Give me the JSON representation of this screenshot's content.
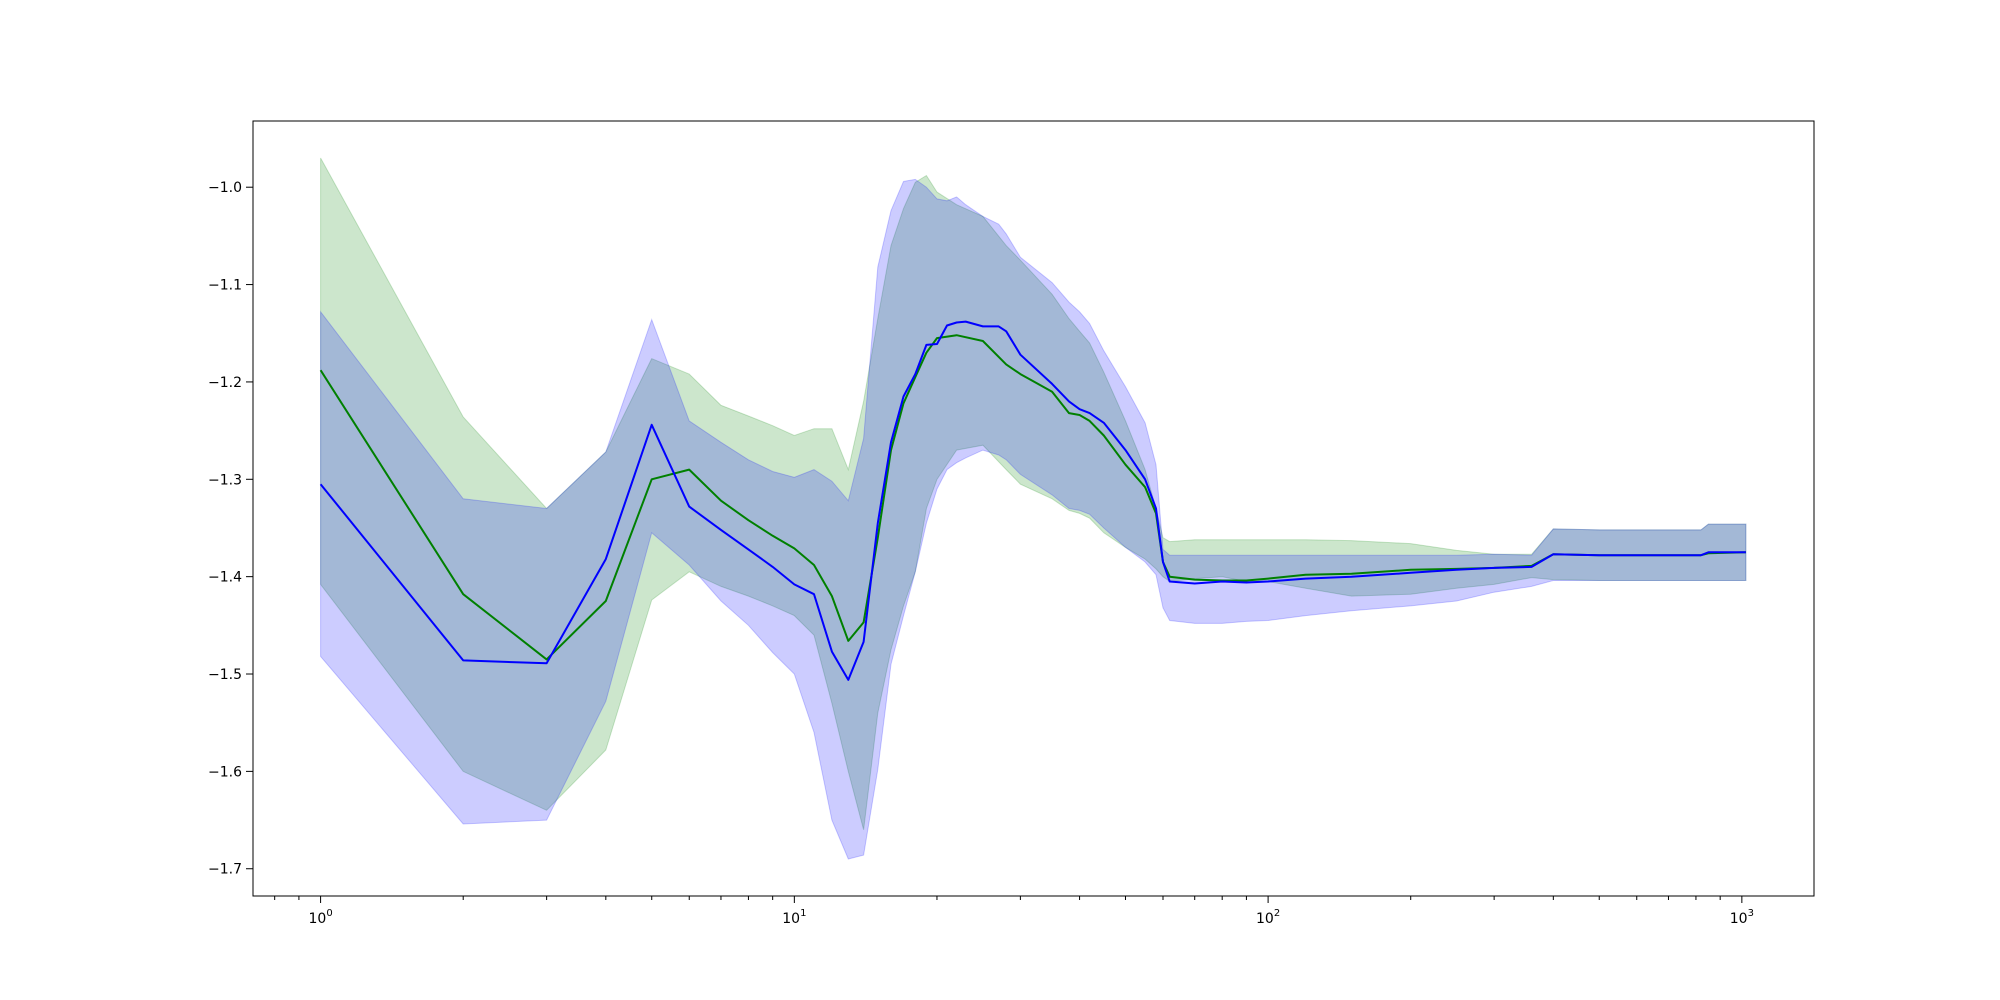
{
  "chart_data": {
    "type": "line",
    "title": "",
    "xlabel": "",
    "ylabel": "",
    "xscale": "log",
    "xlim": [
      0.72,
      1420
    ],
    "ylim": [
      -1.728,
      -0.932
    ],
    "grid": false,
    "legend": "none",
    "x_ticks": [
      {
        "value": 1,
        "base": "10",
        "exp": "0"
      },
      {
        "value": 10,
        "base": "10",
        "exp": "1"
      },
      {
        "value": 100,
        "base": "10",
        "exp": "2"
      },
      {
        "value": 1000,
        "base": "10",
        "exp": "3"
      }
    ],
    "y_ticks": [
      {
        "value": -1.0,
        "label": "−1.0"
      },
      {
        "value": -1.1,
        "label": "−1.1"
      },
      {
        "value": -1.2,
        "label": "−1.2"
      },
      {
        "value": -1.3,
        "label": "−1.3"
      },
      {
        "value": -1.4,
        "label": "−1.4"
      },
      {
        "value": -1.5,
        "label": "−1.5"
      },
      {
        "value": -1.6,
        "label": "−1.6"
      },
      {
        "value": -1.7,
        "label": "−1.7"
      }
    ],
    "series": [
      {
        "color": "#008000",
        "band_color": "#008000",
        "band_opacity": 0.2,
        "x": [
          1,
          2,
          3,
          4,
          5,
          6,
          7,
          8,
          9,
          10,
          11,
          12,
          13,
          14,
          15,
          16,
          17,
          18,
          19,
          20,
          22,
          25,
          28,
          30,
          35,
          38,
          40,
          42,
          45,
          50,
          55,
          58,
          60,
          62,
          70,
          80,
          90,
          100,
          120,
          150,
          200,
          250,
          300,
          360,
          400,
          500,
          600,
          700,
          820,
          850,
          1020
        ],
        "y": [
          -1.188,
          -1.418,
          -1.485,
          -1.425,
          -1.3,
          -1.29,
          -1.322,
          -1.342,
          -1.358,
          -1.371,
          -1.388,
          -1.42,
          -1.466,
          -1.447,
          -1.36,
          -1.27,
          -1.222,
          -1.195,
          -1.17,
          -1.155,
          -1.152,
          -1.158,
          -1.182,
          -1.192,
          -1.21,
          -1.232,
          -1.234,
          -1.24,
          -1.255,
          -1.285,
          -1.308,
          -1.335,
          -1.385,
          -1.4,
          -1.403,
          -1.404,
          -1.404,
          -1.402,
          -1.398,
          -1.397,
          -1.393,
          -1.392,
          -1.391,
          -1.389,
          -1.377,
          -1.378,
          -1.378,
          -1.378,
          -1.378,
          -1.376,
          -1.375
        ],
        "lower": [
          -1.408,
          -1.6,
          -1.64,
          -1.578,
          -1.424,
          -1.395,
          -1.41,
          -1.42,
          -1.43,
          -1.44,
          -1.46,
          -1.53,
          -1.6,
          -1.66,
          -1.54,
          -1.475,
          -1.43,
          -1.395,
          -1.33,
          -1.3,
          -1.27,
          -1.265,
          -1.29,
          -1.305,
          -1.32,
          -1.332,
          -1.335,
          -1.34,
          -1.355,
          -1.37,
          -1.382,
          -1.392,
          -1.4,
          -1.405,
          -1.402,
          -1.4,
          -1.405,
          -1.405,
          -1.412,
          -1.42,
          -1.418,
          -1.412,
          -1.408,
          -1.401,
          -1.403,
          -1.404,
          -1.404,
          -1.404,
          -1.404,
          -1.404,
          -1.404
        ],
        "upper": [
          -0.97,
          -1.236,
          -1.33,
          -1.272,
          -1.176,
          -1.192,
          -1.224,
          -1.235,
          -1.245,
          -1.255,
          -1.248,
          -1.248,
          -1.29,
          -1.22,
          -1.135,
          -1.06,
          -1.022,
          -0.995,
          -0.988,
          -1.005,
          -1.018,
          -1.03,
          -1.06,
          -1.075,
          -1.11,
          -1.135,
          -1.148,
          -1.16,
          -1.19,
          -1.24,
          -1.29,
          -1.33,
          -1.36,
          -1.364,
          -1.362,
          -1.362,
          -1.362,
          -1.362,
          -1.362,
          -1.363,
          -1.366,
          -1.373,
          -1.377,
          -1.377,
          -1.351,
          -1.352,
          -1.352,
          -1.352,
          -1.352,
          -1.346,
          -1.346
        ]
      },
      {
        "color": "#0000ff",
        "band_color": "#0000ff",
        "band_opacity": 0.2,
        "x": [
          1,
          2,
          3,
          4,
          5,
          6,
          7,
          8,
          9,
          10,
          11,
          12,
          13,
          14,
          15,
          16,
          17,
          18,
          19,
          20,
          21,
          22,
          23,
          25,
          27,
          28,
          30,
          35,
          38,
          40,
          42,
          45,
          50,
          55,
          58,
          60,
          62,
          70,
          80,
          90,
          100,
          120,
          150,
          200,
          250,
          300,
          360,
          400,
          500,
          600,
          700,
          820,
          850,
          1020
        ],
        "y": [
          -1.305,
          -1.486,
          -1.489,
          -1.382,
          -1.244,
          -1.328,
          -1.352,
          -1.372,
          -1.39,
          -1.408,
          -1.418,
          -1.477,
          -1.506,
          -1.467,
          -1.345,
          -1.262,
          -1.215,
          -1.192,
          -1.162,
          -1.161,
          -1.142,
          -1.139,
          -1.138,
          -1.143,
          -1.143,
          -1.148,
          -1.172,
          -1.202,
          -1.22,
          -1.228,
          -1.232,
          -1.242,
          -1.27,
          -1.3,
          -1.33,
          -1.385,
          -1.405,
          -1.407,
          -1.405,
          -1.406,
          -1.405,
          -1.402,
          -1.4,
          -1.396,
          -1.393,
          -1.391,
          -1.39,
          -1.377,
          -1.378,
          -1.378,
          -1.378,
          -1.378,
          -1.375,
          -1.375
        ],
        "lower": [
          -1.482,
          -1.654,
          -1.65,
          -1.528,
          -1.355,
          -1.388,
          -1.425,
          -1.45,
          -1.478,
          -1.5,
          -1.56,
          -1.65,
          -1.69,
          -1.686,
          -1.598,
          -1.49,
          -1.44,
          -1.395,
          -1.345,
          -1.31,
          -1.29,
          -1.283,
          -1.278,
          -1.27,
          -1.275,
          -1.28,
          -1.295,
          -1.316,
          -1.33,
          -1.332,
          -1.336,
          -1.35,
          -1.37,
          -1.385,
          -1.398,
          -1.432,
          -1.445,
          -1.448,
          -1.448,
          -1.446,
          -1.445,
          -1.44,
          -1.435,
          -1.43,
          -1.425,
          -1.416,
          -1.41,
          -1.404,
          -1.404,
          -1.404,
          -1.404,
          -1.404,
          -1.404,
          -1.404
        ],
        "upper": [
          -1.128,
          -1.32,
          -1.33,
          -1.272,
          -1.136,
          -1.24,
          -1.262,
          -1.28,
          -1.292,
          -1.298,
          -1.29,
          -1.302,
          -1.322,
          -1.258,
          -1.082,
          -1.024,
          -0.994,
          -0.992,
          -1.0,
          -1.012,
          -1.014,
          -1.01,
          -1.018,
          -1.03,
          -1.038,
          -1.048,
          -1.072,
          -1.098,
          -1.118,
          -1.128,
          -1.14,
          -1.168,
          -1.205,
          -1.242,
          -1.285,
          -1.372,
          -1.378,
          -1.378,
          -1.378,
          -1.378,
          -1.378,
          -1.378,
          -1.378,
          -1.378,
          -1.378,
          -1.377,
          -1.378,
          -1.351,
          -1.352,
          -1.352,
          -1.352,
          -1.352,
          -1.346,
          -1.346
        ]
      }
    ]
  }
}
